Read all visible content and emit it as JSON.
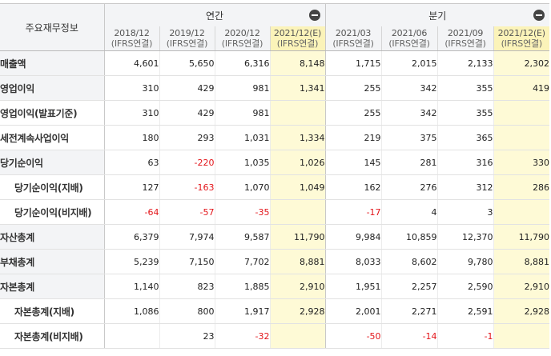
{
  "table": {
    "corner_label": "주요재무정보",
    "annual_label": "연간",
    "quarter_label": "분기",
    "columns": [
      {
        "period": "2018/12",
        "basis": "(IFRS연결)",
        "estimate": false
      },
      {
        "period": "2019/12",
        "basis": "(IFRS연결)",
        "estimate": false
      },
      {
        "period": "2020/12",
        "basis": "(IFRS연결)",
        "estimate": false
      },
      {
        "period": "2021/12(E)",
        "basis": "(IFRS연결)",
        "estimate": true
      },
      {
        "period": "2021/03",
        "basis": "(IFRS연결)",
        "estimate": false
      },
      {
        "period": "2021/06",
        "basis": "(IFRS연결)",
        "estimate": false
      },
      {
        "period": "2021/09",
        "basis": "(IFRS연결)",
        "estimate": false
      },
      {
        "period": "2021/12(E)",
        "basis": "(IFRS연결)",
        "estimate": true
      }
    ],
    "rows": [
      {
        "label": "매출액",
        "indent": false,
        "gray": true,
        "values": [
          "4,601",
          "5,650",
          "6,316",
          "8,148",
          "1,715",
          "2,015",
          "2,133",
          "2,302"
        ]
      },
      {
        "label": "영업이익",
        "indent": false,
        "gray": true,
        "values": [
          "310",
          "429",
          "981",
          "1,341",
          "255",
          "342",
          "355",
          "419"
        ]
      },
      {
        "label": "영업이익(발표기준)",
        "indent": false,
        "gray": false,
        "values": [
          "310",
          "429",
          "981",
          "",
          "255",
          "342",
          "355",
          ""
        ]
      },
      {
        "label": "세전계속사업이익",
        "indent": false,
        "gray": false,
        "values": [
          "180",
          "293",
          "1,031",
          "1,334",
          "219",
          "375",
          "365",
          ""
        ]
      },
      {
        "label": "당기순이익",
        "indent": false,
        "gray": true,
        "values": [
          "63",
          "-220",
          "1,035",
          "1,026",
          "145",
          "281",
          "316",
          "330"
        ]
      },
      {
        "label": "당기순이익(지배)",
        "indent": true,
        "gray": false,
        "values": [
          "127",
          "-163",
          "1,070",
          "1,049",
          "162",
          "276",
          "312",
          "286"
        ]
      },
      {
        "label": "당기순이익(비지배)",
        "indent": true,
        "gray": false,
        "values": [
          "-64",
          "-57",
          "-35",
          "",
          "-17",
          "4",
          "3",
          ""
        ]
      },
      {
        "label": "자산총계",
        "indent": false,
        "gray": true,
        "values": [
          "6,379",
          "7,974",
          "9,587",
          "11,790",
          "9,984",
          "10,859",
          "12,370",
          "11,790"
        ]
      },
      {
        "label": "부채총계",
        "indent": false,
        "gray": true,
        "values": [
          "5,239",
          "7,150",
          "7,702",
          "8,881",
          "8,033",
          "8,602",
          "9,780",
          "8,881"
        ]
      },
      {
        "label": "자본총계",
        "indent": false,
        "gray": true,
        "values": [
          "1,140",
          "823",
          "1,885",
          "2,910",
          "1,951",
          "2,257",
          "2,590",
          "2,910"
        ]
      },
      {
        "label": "자본총계(지배)",
        "indent": true,
        "gray": false,
        "values": [
          "1,086",
          "800",
          "1,917",
          "2,928",
          "2,001",
          "2,271",
          "2,591",
          "2,928"
        ]
      },
      {
        "label": "자본총계(비지배)",
        "indent": true,
        "gray": false,
        "values": [
          "",
          "23",
          "-32",
          "",
          "-50",
          "-14",
          "-1",
          ""
        ]
      }
    ]
  }
}
